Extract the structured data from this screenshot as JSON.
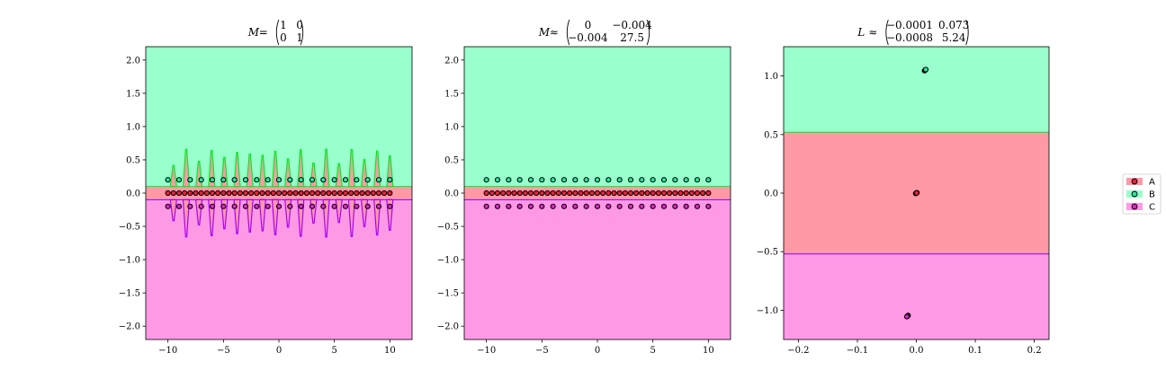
{
  "colors": {
    "A": "#ff99a6",
    "B": "#99ffcc",
    "C": "#ff99e6",
    "A_edge": "#ff3333",
    "B_edge": "#00ee22",
    "C_edge": "#cc00cc",
    "A_marker": "#e8213a",
    "B_marker": "#22e8a0",
    "C_marker": "#e021c8"
  },
  "legend": {
    "position": "right",
    "items": [
      "A",
      "B",
      "C"
    ]
  },
  "chart_data": [
    {
      "type": "scatter",
      "title": {
        "lhs": "M",
        "rel": "=",
        "matrix": [
          [
            "1",
            "0"
          ],
          [
            "0",
            "1"
          ]
        ]
      },
      "xlim": [
        -12,
        12
      ],
      "ylim": [
        -2.2,
        2.2
      ],
      "xticks": [
        -10,
        -5,
        0,
        5,
        10
      ],
      "yticks": [
        -2.0,
        -1.5,
        -1.0,
        -0.5,
        0.0,
        0.5,
        1.0,
        1.5,
        2.0
      ],
      "xtick_labels": [
        "−10",
        "−5",
        "0",
        "5",
        "10"
      ],
      "ytick_labels": [
        "−2.0",
        "−1.5",
        "−1.0",
        "−0.5",
        "0.0",
        "0.5",
        "1.0",
        "1.5",
        "2.0"
      ],
      "regions": {
        "A_top": 0.1,
        "A_bottom": -0.1,
        "spikes": {
          "count": 18,
          "x_start": -9.5,
          "x_end": 10.0,
          "up_max": 0.8,
          "down_max": -0.8
        }
      },
      "series": [
        {
          "name": "A",
          "x_start": -10,
          "x_end": 10,
          "count": 41,
          "y": 0.0
        },
        {
          "name": "B",
          "x_start": -10,
          "x_end": 10,
          "count": 21,
          "y": 0.2
        },
        {
          "name": "C",
          "x_start": -10,
          "x_end": 10,
          "count": 21,
          "y": -0.2
        }
      ]
    },
    {
      "type": "scatter",
      "title": {
        "lhs": "M",
        "rel": "≈",
        "matrix": [
          [
            "0",
            "−0.004"
          ],
          [
            "−0.004",
            "27.5"
          ]
        ]
      },
      "xlim": [
        -12,
        12
      ],
      "ylim": [
        -2.2,
        2.2
      ],
      "xticks": [
        -10,
        -5,
        0,
        5,
        10
      ],
      "yticks": [
        -2.0,
        -1.5,
        -1.0,
        -0.5,
        0.0,
        0.5,
        1.0,
        1.5,
        2.0
      ],
      "xtick_labels": [
        "−10",
        "−5",
        "0",
        "5",
        "10"
      ],
      "ytick_labels": [
        "−2.0",
        "−1.5",
        "−1.0",
        "−0.5",
        "0.0",
        "0.5",
        "1.0",
        "1.5",
        "2.0"
      ],
      "regions": {
        "A_top": 0.1,
        "A_bottom": -0.1
      },
      "series": [
        {
          "name": "A",
          "x_start": -10,
          "x_end": 10,
          "count": 41,
          "y": 0.0
        },
        {
          "name": "B",
          "x_start": -10,
          "x_end": 10,
          "count": 21,
          "y": 0.2
        },
        {
          "name": "C",
          "x_start": -10,
          "x_end": 10,
          "count": 21,
          "y": -0.2
        }
      ]
    },
    {
      "type": "scatter",
      "title": {
        "lhs": "L",
        "rel": "≈",
        "matrix": [
          [
            "−0.0001",
            "0.073"
          ],
          [
            "−0.0008",
            "5.24"
          ]
        ]
      },
      "xlim": [
        -0.225,
        0.225
      ],
      "ylim": [
        -1.25,
        1.25
      ],
      "xticks": [
        -0.2,
        -0.1,
        0.0,
        0.1,
        0.2
      ],
      "yticks": [
        -1.0,
        -0.5,
        0.0,
        0.5,
        1.0
      ],
      "xtick_labels": [
        "−0.2",
        "−0.1",
        "0.0",
        "0.1",
        "0.2"
      ],
      "ytick_labels": [
        "−1.0",
        "−0.5",
        "0.0",
        "0.5",
        "1.0"
      ],
      "regions": {
        "A_top": 0.52,
        "A_bottom": -0.52
      },
      "series": [
        {
          "name": "A",
          "x": [
            -0.001,
            0.0,
            0.001,
            0.0005
          ],
          "y": [
            -0.003,
            0.0,
            0.003,
            0.001
          ]
        },
        {
          "name": "B",
          "x": [
            0.014,
            0.015,
            0.016
          ],
          "y": [
            1.045,
            1.05,
            1.055
          ]
        },
        {
          "name": "C",
          "x": [
            -0.014,
            -0.015,
            -0.016
          ],
          "y": [
            -1.045,
            -1.05,
            -1.055
          ]
        }
      ]
    }
  ]
}
